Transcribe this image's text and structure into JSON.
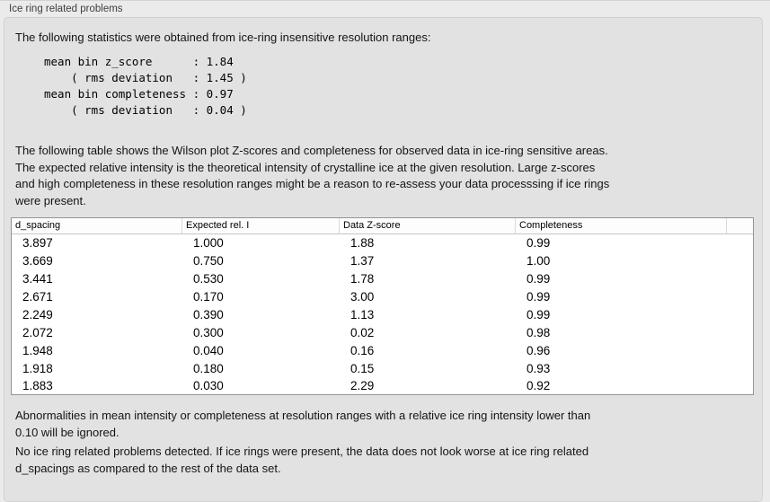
{
  "panel": {
    "title": "Ice ring related problems"
  },
  "intro": {
    "text": "The following statistics were obtained from ice-ring insensitive resolution ranges:"
  },
  "stats_block": {
    "text": "mean bin z_score      : 1.84\n    ( rms deviation   : 1.45 )\nmean bin completeness : 0.97\n    ( rms deviation   : 0.04 )"
  },
  "table_description": {
    "text": "The following table shows the Wilson plot Z-scores and completeness for observed data in ice-ring sensitive areas.\nThe expected relative intensity is the theoretical intensity of crystalline ice at the given resolution. Large z-scores\nand high completeness in these resolution ranges might be a reason to re-assess your data processsing if ice rings\nwere present."
  },
  "table": {
    "columns": [
      "d_spacing",
      "Expected rel. I",
      "Data Z-score",
      "Completeness"
    ],
    "rows": [
      [
        "3.897",
        "1.000",
        "1.88",
        "0.99"
      ],
      [
        "3.669",
        "0.750",
        "1.37",
        "1.00"
      ],
      [
        "3.441",
        "0.530",
        "1.78",
        "0.99"
      ],
      [
        "2.671",
        "0.170",
        "3.00",
        "0.99"
      ],
      [
        "2.249",
        "0.390",
        "1.13",
        "0.99"
      ],
      [
        "2.072",
        "0.300",
        "0.02",
        "0.98"
      ],
      [
        "1.948",
        "0.040",
        "0.16",
        "0.96"
      ],
      [
        "1.918",
        "0.180",
        "0.15",
        "0.93"
      ],
      [
        "1.883",
        "0.030",
        "2.29",
        "0.92"
      ]
    ]
  },
  "notes": {
    "threshold": "Abnormalities in mean intensity or completeness at resolution ranges with a relative ice ring intensity lower than\n0.10 will be ignored.",
    "conclusion": "No ice ring related problems detected. If ice rings were present, the data does not look worse at ice ring related\nd_spacings as compared to the rest of the data set."
  }
}
